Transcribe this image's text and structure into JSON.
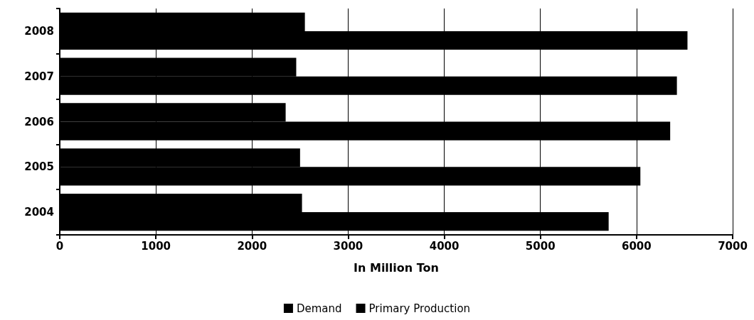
{
  "chart_data": {
    "type": "bar",
    "orientation": "horizontal",
    "xlabel": "In Million Ton",
    "categories": [
      "2008",
      "2007",
      "2006",
      "2005",
      "2004"
    ],
    "series": [
      {
        "name": "Demand",
        "color": "#000000",
        "values": [
          6530,
          6420,
          6350,
          6040,
          5710
        ]
      },
      {
        "name": "Primary Production",
        "color": "#000000",
        "values": [
          2550,
          2460,
          2350,
          2500,
          2520
        ]
      }
    ],
    "xlim": [
      0,
      7000
    ],
    "xticks": [
      0,
      1000,
      2000,
      3000,
      4000,
      5000,
      6000,
      7000
    ],
    "grid": "x",
    "legend": "bottom"
  }
}
